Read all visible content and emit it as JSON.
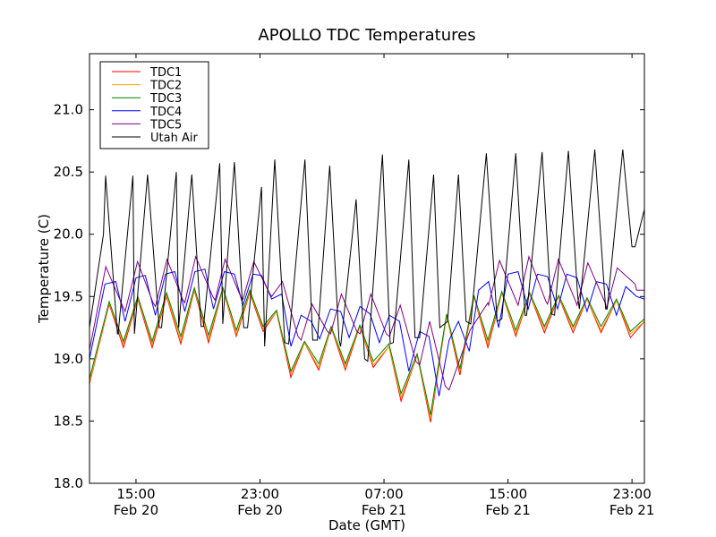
{
  "chart_data": {
    "type": "line",
    "title": "APOLLO TDC Temperatures",
    "xlabel": "Date (GMT)",
    "ylabel": "Temperature (C)",
    "x_units": "hours since Feb 20 12:00 GMT",
    "xlim": [
      0,
      35.8
    ],
    "ylim": [
      18.0,
      21.45
    ],
    "grid": false,
    "legend_position": "top-left",
    "x_ticks": [
      {
        "value": 3,
        "label_time": "15:00",
        "label_date": "Feb 20"
      },
      {
        "value": 11,
        "label_time": "23:00",
        "label_date": "Feb 20"
      },
      {
        "value": 19,
        "label_time": "07:00",
        "label_date": "Feb 21"
      },
      {
        "value": 27,
        "label_time": "15:00",
        "label_date": "Feb 21"
      },
      {
        "value": 35,
        "label_time": "23:00",
        "label_date": "Feb 21"
      }
    ],
    "y_ticks": [
      {
        "value": 18.0,
        "label": "18.0"
      },
      {
        "value": 18.5,
        "label": "18.5"
      },
      {
        "value": 19.0,
        "label": "19.0"
      },
      {
        "value": 19.5,
        "label": "19.5"
      },
      {
        "value": 20.0,
        "label": "20.0"
      },
      {
        "value": 20.5,
        "label": "20.5"
      },
      {
        "value": 21.0,
        "label": "21.0"
      }
    ],
    "series": [
      {
        "name": "TDC1",
        "color": "#ff0000",
        "x": [
          0.0,
          1.27,
          2.19,
          3.12,
          4.04,
          4.97,
          5.89,
          6.76,
          7.68,
          8.61,
          9.47,
          10.34,
          11.2,
          12.06,
          12.99,
          13.87,
          14.79,
          15.59,
          16.5,
          17.44,
          18.31,
          19.32,
          20.1,
          21.14,
          22.0,
          23.04,
          23.9,
          24.8,
          25.7,
          26.6,
          27.5,
          28.4,
          29.35,
          30.26,
          31.2,
          32.1,
          33.0,
          34.0,
          34.9,
          35.8
        ],
        "y": [
          18.8,
          19.44,
          19.09,
          19.48,
          19.09,
          19.5,
          19.12,
          19.55,
          19.13,
          19.56,
          19.18,
          19.53,
          19.22,
          19.38,
          18.85,
          19.13,
          18.91,
          19.25,
          18.91,
          19.26,
          18.93,
          19.1,
          18.66,
          19.03,
          18.49,
          19.35,
          18.87,
          19.5,
          19.09,
          19.53,
          19.18,
          19.52,
          19.21,
          19.5,
          19.21,
          19.48,
          19.21,
          19.47,
          19.17,
          19.3
        ]
      },
      {
        "name": "TDC2",
        "color": "#ffa500",
        "x": [
          0.0,
          1.27,
          2.19,
          3.12,
          4.04,
          4.97,
          5.89,
          6.76,
          7.68,
          8.61,
          9.47,
          10.34,
          11.2,
          12.06,
          12.99,
          13.87,
          14.79,
          15.59,
          16.5,
          17.44,
          18.31,
          19.32,
          20.1,
          21.14,
          22.0,
          23.04,
          23.9,
          24.8,
          25.7,
          26.6,
          27.5,
          28.4,
          29.35,
          30.26,
          31.2,
          32.1,
          33.0,
          34.0,
          34.9,
          35.8
        ],
        "y": [
          18.81,
          19.45,
          19.12,
          19.49,
          19.12,
          19.51,
          19.15,
          19.56,
          19.16,
          19.56,
          19.2,
          19.54,
          19.24,
          19.38,
          18.88,
          19.13,
          18.93,
          19.25,
          18.94,
          19.26,
          18.95,
          19.1,
          18.69,
          19.03,
          18.52,
          19.35,
          18.9,
          19.5,
          19.12,
          19.53,
          19.2,
          19.52,
          19.24,
          19.5,
          19.24,
          19.48,
          19.23,
          19.47,
          19.2,
          19.3
        ]
      },
      {
        "name": "TDC3",
        "color": "#008000",
        "x": [
          0.0,
          1.27,
          2.19,
          3.12,
          4.04,
          4.97,
          5.89,
          6.76,
          7.68,
          8.61,
          9.47,
          10.34,
          11.2,
          12.06,
          12.99,
          13.87,
          14.79,
          15.59,
          16.5,
          17.44,
          18.31,
          19.32,
          20.1,
          21.14,
          22.0,
          23.04,
          23.9,
          24.8,
          25.7,
          26.6,
          27.5,
          28.4,
          29.35,
          30.26,
          31.2,
          32.1,
          33.0,
          34.0,
          34.9,
          35.8
        ],
        "y": [
          18.84,
          19.46,
          19.14,
          19.5,
          19.14,
          19.53,
          19.18,
          19.57,
          19.19,
          19.57,
          19.23,
          19.55,
          19.26,
          19.39,
          18.9,
          19.14,
          18.96,
          19.26,
          18.96,
          19.27,
          18.98,
          19.12,
          18.72,
          19.04,
          18.55,
          19.36,
          18.92,
          19.51,
          19.15,
          19.54,
          19.23,
          19.53,
          19.26,
          19.51,
          19.26,
          19.49,
          19.26,
          19.48,
          19.22,
          19.32
        ]
      },
      {
        "name": "TDC4",
        "color": "#0000ff",
        "x": [
          0.0,
          1.0,
          1.7,
          2.3,
          3.0,
          3.6,
          4.25,
          4.9,
          5.5,
          6.15,
          6.8,
          7.45,
          8.0,
          8.7,
          9.35,
          9.9,
          10.55,
          11.1,
          11.75,
          12.4,
          13.0,
          13.65,
          14.3,
          14.85,
          15.55,
          16.2,
          16.75,
          17.45,
          18.1,
          18.7,
          19.35,
          20.0,
          20.6,
          21.3,
          21.9,
          22.55,
          23.2,
          23.8,
          24.5,
          25.1,
          25.75,
          26.4,
          27.0,
          27.65,
          28.3,
          28.9,
          29.55,
          30.2,
          30.8,
          31.45,
          32.1,
          32.7,
          33.35,
          34.0,
          34.6,
          35.3,
          35.8
        ],
        "y": [
          19.0,
          19.6,
          19.62,
          19.3,
          19.65,
          19.67,
          19.35,
          19.68,
          19.7,
          19.38,
          19.7,
          19.72,
          19.4,
          19.7,
          19.68,
          19.43,
          19.68,
          19.67,
          19.48,
          19.52,
          19.1,
          19.35,
          19.3,
          19.16,
          19.4,
          19.38,
          19.17,
          19.42,
          19.36,
          19.13,
          19.35,
          19.3,
          18.9,
          19.22,
          19.18,
          18.7,
          19.15,
          19.3,
          19.06,
          19.55,
          19.62,
          19.25,
          19.68,
          19.7,
          19.4,
          19.68,
          19.66,
          19.4,
          19.68,
          19.65,
          19.38,
          19.62,
          19.6,
          19.35,
          19.58,
          19.5,
          19.48
        ]
      },
      {
        "name": "TDC5",
        "color": "#800080",
        "x": [
          0.0,
          1.05,
          2.15,
          2.3,
          3.1,
          4.1,
          4.25,
          5.0,
          6.0,
          6.15,
          6.85,
          7.95,
          8.1,
          8.75,
          9.75,
          9.9,
          10.6,
          11.6,
          11.75,
          12.45,
          13.45,
          13.65,
          14.35,
          15.35,
          15.55,
          16.25,
          17.25,
          17.45,
          18.15,
          19.15,
          19.35,
          20.05,
          21.05,
          21.3,
          21.95,
          22.95,
          23.2,
          24.55,
          25.7,
          25.75,
          26.45,
          27.55,
          27.65,
          28.35,
          29.45,
          29.55,
          30.25,
          31.4,
          31.45,
          32.15,
          33.3,
          33.35,
          34.05,
          35.2,
          35.3,
          35.8
        ],
        "y": [
          19.07,
          19.74,
          19.42,
          19.38,
          19.78,
          19.45,
          19.42,
          19.8,
          19.48,
          19.45,
          19.82,
          19.5,
          19.47,
          19.8,
          19.5,
          19.48,
          19.78,
          19.53,
          19.5,
          19.62,
          19.18,
          19.15,
          19.44,
          19.22,
          19.2,
          19.52,
          19.22,
          19.2,
          19.52,
          19.2,
          19.18,
          19.43,
          18.98,
          18.95,
          19.3,
          18.78,
          18.75,
          19.23,
          19.45,
          19.43,
          19.79,
          19.46,
          19.43,
          19.82,
          19.46,
          19.44,
          19.8,
          19.45,
          19.43,
          19.77,
          19.44,
          19.4,
          19.73,
          19.6,
          19.55,
          19.55
        ]
      },
      {
        "name": "Utah Air",
        "color": "#000000",
        "x": [
          0.0,
          0.9,
          1.04,
          1.8,
          1.85,
          2.8,
          2.9,
          3.75,
          4.5,
          4.65,
          5.6,
          5.75,
          6.6,
          7.2,
          7.35,
          8.4,
          8.6,
          9.35,
          9.95,
          10.2,
          11.1,
          11.3,
          11.95,
          12.6,
          12.85,
          13.9,
          14.4,
          14.7,
          15.5,
          16.1,
          16.2,
          17.2,
          17.75,
          17.95,
          18.9,
          19.4,
          19.6,
          20.6,
          21.0,
          21.3,
          22.2,
          22.6,
          23.1,
          23.8,
          24.3,
          24.6,
          25.6,
          26.3,
          26.6,
          27.5,
          28.1,
          28.2,
          29.2,
          29.8,
          30.0,
          30.9,
          31.5,
          31.6,
          32.6,
          33.3,
          33.4,
          34.4,
          35.0,
          35.2,
          35.8
        ],
        "y": [
          19.25,
          20.0,
          20.47,
          19.2,
          19.2,
          20.47,
          19.2,
          20.48,
          19.25,
          19.25,
          20.5,
          19.25,
          20.48,
          19.26,
          19.26,
          20.57,
          19.28,
          20.58,
          19.25,
          19.25,
          20.38,
          19.1,
          20.6,
          19.13,
          19.12,
          20.6,
          19.15,
          19.15,
          20.55,
          19.15,
          19.1,
          20.28,
          19.0,
          18.98,
          20.64,
          19.12,
          19.13,
          20.6,
          19.17,
          19.17,
          20.48,
          19.25,
          19.3,
          20.48,
          19.3,
          19.28,
          20.65,
          19.3,
          19.32,
          20.65,
          19.35,
          19.35,
          20.66,
          19.36,
          19.35,
          20.67,
          19.5,
          19.4,
          20.68,
          19.4,
          19.4,
          20.68,
          19.9,
          19.9,
          20.2
        ]
      }
    ]
  }
}
